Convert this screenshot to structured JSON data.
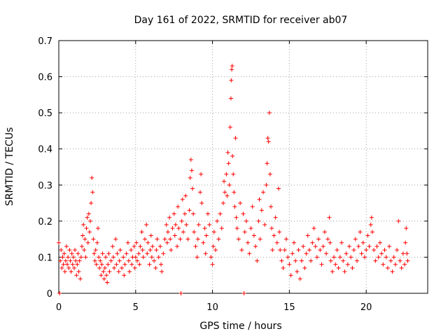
{
  "chart_data": {
    "type": "scatter",
    "title": "Day 161 of 2022, SRMTID for receiver ab07",
    "xlabel": "GPS time / hours",
    "ylabel": "SRMTID / TECUs",
    "xlim": [
      0,
      24
    ],
    "ylim": [
      0,
      0.7
    ],
    "xticks": [
      0,
      5,
      10,
      15,
      20
    ],
    "xtick_labels": [
      "0",
      "5",
      "10",
      "15",
      "20"
    ],
    "yticks": [
      0,
      0.1,
      0.2,
      0.3,
      0.4,
      0.5,
      0.6,
      0.7
    ],
    "ytick_labels": [
      "0",
      "0.1",
      "0.2",
      "0.3",
      "0.4",
      "0.5",
      "0.6",
      "0.7"
    ],
    "grid": true,
    "marker": "+",
    "color": "#ff0000",
    "series": [
      {
        "name": "SRMTID",
        "points": [
          [
            0.0,
            0.14
          ],
          [
            0.05,
            0.0
          ],
          [
            0.1,
            0.09
          ],
          [
            0.15,
            0.12
          ],
          [
            0.2,
            0.07
          ],
          [
            0.25,
            0.1
          ],
          [
            0.3,
            0.08
          ],
          [
            0.35,
            0.11
          ],
          [
            0.4,
            0.06
          ],
          [
            0.45,
            0.09
          ],
          [
            0.5,
            0.13
          ],
          [
            0.55,
            0.08
          ],
          [
            0.6,
            0.1
          ],
          [
            0.65,
            0.07
          ],
          [
            0.7,
            0.12
          ],
          [
            0.75,
            0.09
          ],
          [
            0.8,
            0.06
          ],
          [
            0.85,
            0.11
          ],
          [
            0.9,
            0.08
          ],
          [
            0.95,
            0.1
          ],
          [
            1.0,
            0.07
          ],
          [
            1.05,
            0.12
          ],
          [
            1.1,
            0.09
          ],
          [
            1.15,
            0.05
          ],
          [
            1.2,
            0.08
          ],
          [
            1.25,
            0.11
          ],
          [
            1.3,
            0.06
          ],
          [
            1.35,
            0.09
          ],
          [
            1.4,
            0.04
          ],
          [
            1.45,
            0.1
          ],
          [
            1.5,
            0.13
          ],
          [
            1.55,
            0.16
          ],
          [
            1.6,
            0.19
          ],
          [
            1.65,
            0.12
          ],
          [
            1.7,
            0.15
          ],
          [
            1.75,
            0.1
          ],
          [
            1.8,
            0.18
          ],
          [
            1.85,
            0.21
          ],
          [
            1.9,
            0.14
          ],
          [
            1.95,
            0.22
          ],
          [
            2.0,
            0.17
          ],
          [
            2.05,
            0.2
          ],
          [
            2.1,
            0.25
          ],
          [
            2.15,
            0.32
          ],
          [
            2.2,
            0.28
          ],
          [
            2.25,
            0.15
          ],
          [
            2.3,
            0.11
          ],
          [
            2.35,
            0.09
          ],
          [
            2.4,
            0.12
          ],
          [
            2.45,
            0.08
          ],
          [
            2.5,
            0.14
          ],
          [
            2.55,
            0.18
          ],
          [
            2.6,
            0.1
          ],
          [
            2.65,
            0.07
          ],
          [
            2.7,
            0.09
          ],
          [
            2.75,
            0.05
          ],
          [
            2.8,
            0.08
          ],
          [
            2.85,
            0.11
          ],
          [
            2.9,
            0.06
          ],
          [
            2.95,
            0.04
          ],
          [
            3.0,
            0.07
          ],
          [
            3.05,
            0.1
          ],
          [
            3.1,
            0.05
          ],
          [
            3.15,
            0.03
          ],
          [
            3.2,
            0.08
          ],
          [
            3.25,
            0.11
          ],
          [
            3.3,
            0.06
          ],
          [
            3.4,
            0.09
          ],
          [
            3.5,
            0.13
          ],
          [
            3.55,
            0.1
          ],
          [
            3.6,
            0.07
          ],
          [
            3.7,
            0.15
          ],
          [
            3.75,
            0.08
          ],
          [
            3.8,
            0.11
          ],
          [
            3.9,
            0.06
          ],
          [
            3.95,
            0.09
          ],
          [
            4.0,
            0.12
          ],
          [
            4.1,
            0.07
          ],
          [
            4.2,
            0.1
          ],
          [
            4.25,
            0.05
          ],
          [
            4.3,
            0.08
          ],
          [
            4.4,
            0.11
          ],
          [
            4.5,
            0.14
          ],
          [
            4.55,
            0.09
          ],
          [
            4.6,
            0.06
          ],
          [
            4.7,
            0.12
          ],
          [
            4.75,
            0.08
          ],
          [
            4.8,
            0.1
          ],
          [
            4.9,
            0.13
          ],
          [
            4.95,
            0.07
          ],
          [
            5.0,
            0.1
          ],
          [
            5.05,
            0.14
          ],
          [
            5.1,
            0.09
          ],
          [
            5.2,
            0.11
          ],
          [
            5.25,
            0.08
          ],
          [
            5.3,
            0.13
          ],
          [
            5.4,
            0.17
          ],
          [
            5.45,
            0.12
          ],
          [
            5.5,
            0.1
          ],
          [
            5.6,
            0.15
          ],
          [
            5.7,
            0.19
          ],
          [
            5.75,
            0.11
          ],
          [
            5.8,
            0.14
          ],
          [
            5.9,
            0.08
          ],
          [
            5.95,
            0.12
          ],
          [
            6.0,
            0.16
          ],
          [
            6.05,
            0.1
          ],
          [
            6.1,
            0.13
          ],
          [
            6.2,
            0.09
          ],
          [
            6.3,
            0.07
          ],
          [
            6.35,
            0.12
          ],
          [
            6.4,
            0.15
          ],
          [
            6.5,
            0.1
          ],
          [
            6.6,
            0.13
          ],
          [
            6.65,
            0.08
          ],
          [
            6.7,
            0.06
          ],
          [
            6.8,
            0.11
          ],
          [
            6.9,
            0.15
          ],
          [
            7.0,
            0.19
          ],
          [
            7.05,
            0.14
          ],
          [
            7.1,
            0.17
          ],
          [
            7.2,
            0.21
          ],
          [
            7.25,
            0.15
          ],
          [
            7.3,
            0.12
          ],
          [
            7.4,
            0.18
          ],
          [
            7.5,
            0.22
          ],
          [
            7.55,
            0.16
          ],
          [
            7.6,
            0.19
          ],
          [
            7.7,
            0.13
          ],
          [
            7.75,
            0.24
          ],
          [
            7.8,
            0.18
          ],
          [
            7.9,
            0.15
          ],
          [
            7.95,
            0.0
          ],
          [
            8.0,
            0.2
          ],
          [
            8.05,
            0.26
          ],
          [
            8.1,
            0.17
          ],
          [
            8.2,
            0.22
          ],
          [
            8.25,
            0.27
          ],
          [
            8.3,
            0.19
          ],
          [
            8.4,
            0.15
          ],
          [
            8.5,
            0.23
          ],
          [
            8.55,
            0.32
          ],
          [
            8.6,
            0.37
          ],
          [
            8.65,
            0.34
          ],
          [
            8.7,
            0.29
          ],
          [
            8.75,
            0.22
          ],
          [
            8.8,
            0.17
          ],
          [
            8.9,
            0.13
          ],
          [
            9.0,
            0.1
          ],
          [
            9.05,
            0.15
          ],
          [
            9.1,
            0.19
          ],
          [
            9.2,
            0.28
          ],
          [
            9.25,
            0.33
          ],
          [
            9.3,
            0.25
          ],
          [
            9.4,
            0.14
          ],
          [
            9.5,
            0.18
          ],
          [
            9.55,
            0.11
          ],
          [
            9.6,
            0.16
          ],
          [
            9.7,
            0.22
          ],
          [
            9.8,
            0.19
          ],
          [
            9.9,
            0.1
          ],
          [
            10.0,
            0.08
          ],
          [
            10.05,
            0.13
          ],
          [
            10.1,
            0.17
          ],
          [
            10.2,
            0.12
          ],
          [
            10.3,
            0.2
          ],
          [
            10.4,
            0.15
          ],
          [
            10.5,
            0.22
          ],
          [
            10.6,
            0.18
          ],
          [
            10.7,
            0.25
          ],
          [
            10.75,
            0.31
          ],
          [
            10.8,
            0.28
          ],
          [
            10.9,
            0.33
          ],
          [
            10.95,
            0.27
          ],
          [
            11.0,
            0.39
          ],
          [
            11.05,
            0.36
          ],
          [
            11.1,
            0.3
          ],
          [
            11.15,
            0.46
          ],
          [
            11.2,
            0.54
          ],
          [
            11.22,
            0.59
          ],
          [
            11.25,
            0.62
          ],
          [
            11.28,
            0.63
          ],
          [
            11.3,
            0.38
          ],
          [
            11.35,
            0.33
          ],
          [
            11.4,
            0.28
          ],
          [
            11.45,
            0.24
          ],
          [
            11.5,
            0.43
          ],
          [
            11.55,
            0.21
          ],
          [
            11.6,
            0.18
          ],
          [
            11.7,
            0.15
          ],
          [
            11.8,
            0.25
          ],
          [
            11.9,
            0.12
          ],
          [
            12.0,
            0.22
          ],
          [
            12.05,
            0.0
          ],
          [
            12.1,
            0.17
          ],
          [
            12.2,
            0.2
          ],
          [
            12.3,
            0.14
          ],
          [
            12.4,
            0.11
          ],
          [
            12.5,
            0.18
          ],
          [
            12.6,
            0.24
          ],
          [
            12.7,
            0.16
          ],
          [
            12.8,
            0.13
          ],
          [
            12.9,
            0.09
          ],
          [
            13.0,
            0.2
          ],
          [
            13.05,
            0.26
          ],
          [
            13.1,
            0.15
          ],
          [
            13.2,
            0.23
          ],
          [
            13.3,
            0.28
          ],
          [
            13.4,
            0.19
          ],
          [
            13.5,
            0.3
          ],
          [
            13.55,
            0.36
          ],
          [
            13.6,
            0.43
          ],
          [
            13.65,
            0.42
          ],
          [
            13.7,
            0.5
          ],
          [
            13.75,
            0.33
          ],
          [
            13.8,
            0.24
          ],
          [
            13.85,
            0.18
          ],
          [
            13.9,
            0.12
          ],
          [
            14.0,
            0.16
          ],
          [
            14.1,
            0.21
          ],
          [
            14.2,
            0.14
          ],
          [
            14.3,
            0.29
          ],
          [
            14.35,
            0.17
          ],
          [
            14.4,
            0.12
          ],
          [
            14.5,
            0.09
          ],
          [
            14.6,
            0.07
          ],
          [
            14.7,
            0.12
          ],
          [
            14.8,
            0.15
          ],
          [
            14.9,
            0.1
          ],
          [
            15.0,
            0.08
          ],
          [
            15.1,
            0.05
          ],
          [
            15.2,
            0.11
          ],
          [
            15.3,
            0.14
          ],
          [
            15.4,
            0.09
          ],
          [
            15.5,
            0.06
          ],
          [
            15.6,
            0.12
          ],
          [
            15.7,
            0.04
          ],
          [
            15.8,
            0.09
          ],
          [
            15.9,
            0.13
          ],
          [
            16.0,
            0.07
          ],
          [
            16.1,
            0.11
          ],
          [
            16.2,
            0.16
          ],
          [
            16.3,
            0.12
          ],
          [
            16.4,
            0.09
          ],
          [
            16.5,
            0.14
          ],
          [
            16.6,
            0.18
          ],
          [
            16.7,
            0.13
          ],
          [
            16.8,
            0.1
          ],
          [
            16.9,
            0.15
          ],
          [
            17.0,
            0.12
          ],
          [
            17.1,
            0.08
          ],
          [
            17.2,
            0.13
          ],
          [
            17.3,
            0.17
          ],
          [
            17.4,
            0.11
          ],
          [
            17.5,
            0.15
          ],
          [
            17.6,
            0.21
          ],
          [
            17.65,
            0.14
          ],
          [
            17.7,
            0.09
          ],
          [
            17.8,
            0.06
          ],
          [
            17.9,
            0.1
          ],
          [
            18.0,
            0.08
          ],
          [
            18.1,
            0.12
          ],
          [
            18.2,
            0.07
          ],
          [
            18.3,
            0.1
          ],
          [
            18.4,
            0.14
          ],
          [
            18.5,
            0.09
          ],
          [
            18.6,
            0.06
          ],
          [
            18.7,
            0.11
          ],
          [
            18.8,
            0.08
          ],
          [
            18.9,
            0.13
          ],
          [
            19.0,
            0.1
          ],
          [
            19.1,
            0.07
          ],
          [
            19.2,
            0.12
          ],
          [
            19.3,
            0.15
          ],
          [
            19.4,
            0.09
          ],
          [
            19.5,
            0.13
          ],
          [
            19.6,
            0.17
          ],
          [
            19.7,
            0.11
          ],
          [
            19.8,
            0.14
          ],
          [
            19.9,
            0.1
          ],
          [
            20.0,
            0.12
          ],
          [
            20.1,
            0.16
          ],
          [
            20.2,
            0.13
          ],
          [
            20.3,
            0.19
          ],
          [
            20.35,
            0.21
          ],
          [
            20.4,
            0.17
          ],
          [
            20.5,
            0.12
          ],
          [
            20.6,
            0.09
          ],
          [
            20.7,
            0.13
          ],
          [
            20.8,
            0.1
          ],
          [
            20.9,
            0.14
          ],
          [
            21.0,
            0.11
          ],
          [
            21.1,
            0.08
          ],
          [
            21.2,
            0.12
          ],
          [
            21.3,
            0.1
          ],
          [
            21.4,
            0.07
          ],
          [
            21.5,
            0.13
          ],
          [
            21.6,
            0.09
          ],
          [
            21.7,
            0.06
          ],
          [
            21.8,
            0.1
          ],
          [
            21.9,
            0.08
          ],
          [
            22.0,
            0.12
          ],
          [
            22.1,
            0.2
          ],
          [
            22.2,
            0.09
          ],
          [
            22.3,
            0.07
          ],
          [
            22.4,
            0.11
          ],
          [
            22.5,
            0.08
          ],
          [
            22.55,
            0.14
          ],
          [
            22.6,
            0.18
          ],
          [
            22.65,
            0.11
          ],
          [
            22.7,
            0.09
          ]
        ]
      }
    ]
  }
}
